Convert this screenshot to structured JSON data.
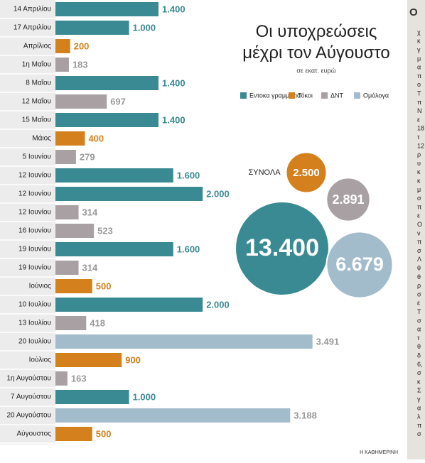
{
  "chart_data": {
    "type": "bar",
    "title": "Οι υποχρεώσεις μέχρι τον Αύγουστο",
    "subtitle": "σε εκατ. ευρώ",
    "source": "Η ΚΑΘΗΜΕΡΙΝΗ",
    "categories": [
      "14 Απριλίου",
      "17 Απριλίου",
      "Απρίλιος",
      "1η Μαΐου",
      "8 Μαΐου",
      "12 Μαΐου",
      "15 Μαΐου",
      "Μάιος",
      "5 Ιουνίου",
      "12 Ιουνίου",
      "12 Ιουνίου",
      "12 Ιουνίου",
      "16 Ιουνίου",
      "19 Ιουνίου",
      "19 Ιουνίου",
      "Ιούνιος",
      "10 Ιουλίου",
      "13 Ιουλίου",
      "20 Ιουλίου",
      "Ιούλιος",
      "1η Αυγούστου",
      "7 Αυγούστου",
      "20 Αυγούστου",
      "Αύγουστος"
    ],
    "series": [
      {
        "name": "Εντοκα γραμμάτια",
        "color": "#3a8a93",
        "values": [
          1400,
          1000,
          null,
          null,
          1400,
          null,
          1400,
          null,
          null,
          1600,
          2000,
          null,
          null,
          1600,
          null,
          null,
          2000,
          null,
          null,
          null,
          null,
          1000,
          null,
          null
        ],
        "value_labels": [
          "1.400",
          "1.000",
          null,
          null,
          "1.400",
          null,
          "1.400",
          null,
          null,
          "1.600",
          "2.000",
          null,
          null,
          "1.600",
          null,
          null,
          "2.000",
          null,
          null,
          null,
          null,
          "1.000",
          null,
          null
        ]
      },
      {
        "name": "Τόκοι",
        "color": "#d4811d",
        "values": [
          null,
          null,
          200,
          null,
          null,
          null,
          null,
          400,
          null,
          null,
          null,
          null,
          null,
          null,
          null,
          500,
          null,
          null,
          null,
          900,
          null,
          null,
          null,
          500
        ]
      },
      {
        "name": "ΔΝΤ",
        "color": "#a9a0a3",
        "values": [
          null,
          null,
          null,
          183,
          null,
          697,
          null,
          null,
          279,
          null,
          null,
          314,
          523,
          null,
          314,
          null,
          null,
          418,
          null,
          null,
          163,
          null,
          null,
          null
        ]
      },
      {
        "name": "Ομόλογα",
        "color": "#a3bccc",
        "values": [
          null,
          null,
          null,
          null,
          null,
          null,
          null,
          null,
          null,
          null,
          null,
          null,
          null,
          null,
          null,
          null,
          null,
          null,
          3491,
          null,
          null,
          null,
          3188,
          null
        ],
        "value_labels": [
          null,
          null,
          null,
          null,
          null,
          null,
          null,
          null,
          null,
          null,
          null,
          null,
          null,
          null,
          null,
          null,
          null,
          null,
          "3.491",
          null,
          null,
          null,
          "3.188",
          null
        ]
      }
    ],
    "totals_label": "ΣΥΝΟΛΑ",
    "totals": [
      {
        "value": 13400,
        "label": "13.400",
        "color": "#3a8a93"
      },
      {
        "value": 2500,
        "label": "2.500",
        "color": "#d4811d"
      },
      {
        "value": 2891,
        "label": "2.891",
        "color": "#a9a0a3"
      },
      {
        "value": 6679,
        "label": "6.679",
        "color": "#a3bccc"
      }
    ],
    "side_column": {
      "header": "Ο",
      "lines": [
        "χ",
        "κ",
        "γ",
        "μ",
        "α",
        "π",
        "ο",
        "Τ",
        "π",
        "Ν",
        "ε",
        "18",
        "τ",
        "12",
        "ρ",
        "υ",
        "κ",
        "κ",
        "μ",
        "σ",
        "π",
        "ε",
        "Ο",
        "ν",
        "π",
        "σ",
        "Λ",
        "θ",
        "θ",
        "ρ",
        "σ",
        "ε",
        "Τ",
        "σ",
        "α",
        "τ",
        "θ",
        "δ",
        "6,",
        "σ",
        "κ",
        "Σ",
        "γ",
        "α",
        "λ",
        "π",
        "σ"
      ]
    }
  }
}
